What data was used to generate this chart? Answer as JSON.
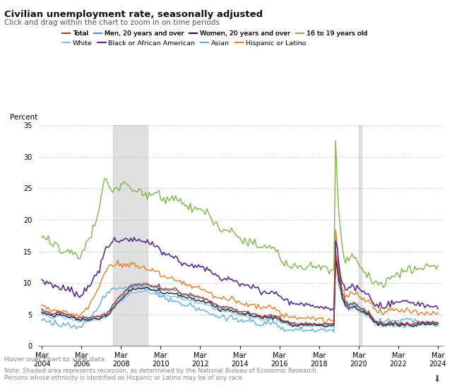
{
  "title": "Civilian unemployment rate, seasonally adjusted",
  "subtitle": "Click and drag within the chart to zoom in on time periods",
  "ylabel": "Percent",
  "ylim": [
    0.0,
    35.0
  ],
  "yticks": [
    0.0,
    5.0,
    10.0,
    15.0,
    20.0,
    25.0,
    30.0,
    35.0
  ],
  "recession_bands": [
    {
      "start": 2007.75,
      "end": 2009.5
    },
    {
      "start": 2020.167,
      "end": 2020.33
    }
  ],
  "xtick_years": [
    2004,
    2006,
    2008,
    2010,
    2012,
    2014,
    2016,
    2018,
    2020,
    2022,
    2024
  ],
  "series_colors": {
    "Total": "#c0392b",
    "Men": "#4a90d9",
    "Women": "#1a1a2e",
    "Teen": "#7ab648",
    "White": "#85c1e9",
    "Black": "#5b2c8d",
    "Asian": "#5dade2",
    "Hispanic": "#e67e22"
  },
  "bg_color": "#ffffff",
  "note_text": "Note: Shaded area represents recession, as determined by the National Bureau of Economic Research.\nPersons whose ethnicity is identified as Hispanic or Latino may be of any race.",
  "hover_text": "Hover over chart to view data."
}
